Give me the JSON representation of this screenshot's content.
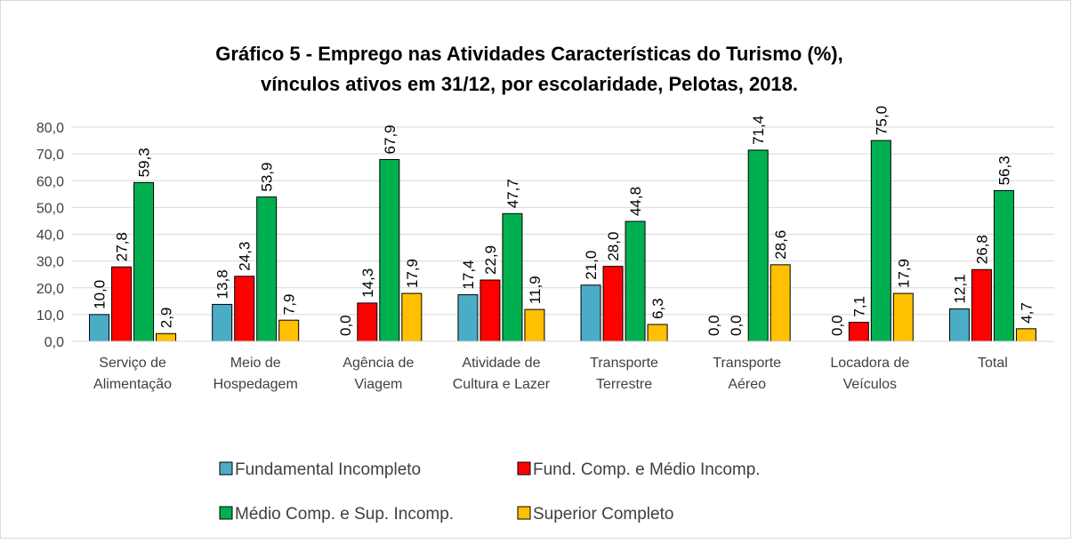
{
  "chart_data": {
    "type": "bar",
    "title": [
      "Gráfico 5 - Emprego nas Atividades Características do Turismo (%),",
      "vínculos ativos em 31/12, por escolaridade, Pelotas, 2018."
    ],
    "categories": [
      "Serviço de Alimentação",
      "Meio de Hospedagem",
      "Agência de Viagem",
      "Atividade de Cultura e Lazer",
      "Transporte Terrestre",
      "Transporte Aéreo",
      "Locadora de Veículos",
      "Total"
    ],
    "series": [
      {
        "name": "Fundamental Incompleto",
        "color": "#4bacc6",
        "values": [
          10.0,
          13.8,
          0.0,
          17.4,
          21.0,
          0.0,
          0.0,
          12.1
        ],
        "value_labels": [
          "10,0",
          "13,8",
          "0,0",
          "17,4",
          "21,0",
          "0,0",
          "0,0",
          "12,1"
        ]
      },
      {
        "name": "Fund. Comp. e Médio Incomp.",
        "color": "#ff0000",
        "values": [
          27.8,
          24.3,
          14.3,
          22.9,
          28.0,
          0.0,
          7.1,
          26.8
        ],
        "value_labels": [
          "27,8",
          "24,3",
          "14,3",
          "22,9",
          "28,0",
          "0,0",
          "7,1",
          "26,8"
        ]
      },
      {
        "name": "Médio Comp. e Sup. Incomp.",
        "color": "#00b050",
        "values": [
          59.3,
          53.9,
          67.9,
          47.7,
          44.8,
          71.4,
          75.0,
          56.3
        ],
        "value_labels": [
          "59,3",
          "53,9",
          "67,9",
          "47,7",
          "44,8",
          "71,4",
          "75,0",
          "56,3"
        ]
      },
      {
        "name": "Superior Completo",
        "color": "#ffc000",
        "values": [
          2.9,
          7.9,
          17.9,
          11.9,
          6.3,
          28.6,
          17.9,
          4.7
        ],
        "value_labels": [
          "2,9",
          "7,9",
          "17,9",
          "11,9",
          "6,3",
          "28,6",
          "17,9",
          "4,7"
        ]
      }
    ],
    "ylim": [
      0,
      80
    ],
    "yticks": [
      {
        "value": 0,
        "label": "0,0"
      },
      {
        "value": 10,
        "label": "10,0"
      },
      {
        "value": 20,
        "label": "20,0"
      },
      {
        "value": 30,
        "label": "30,0"
      },
      {
        "value": 40,
        "label": "40,0"
      },
      {
        "value": 50,
        "label": "50,0"
      },
      {
        "value": 60,
        "label": "60,0"
      },
      {
        "value": 70,
        "label": "70,0"
      },
      {
        "value": 80,
        "label": "80,0"
      }
    ],
    "grid": true
  }
}
